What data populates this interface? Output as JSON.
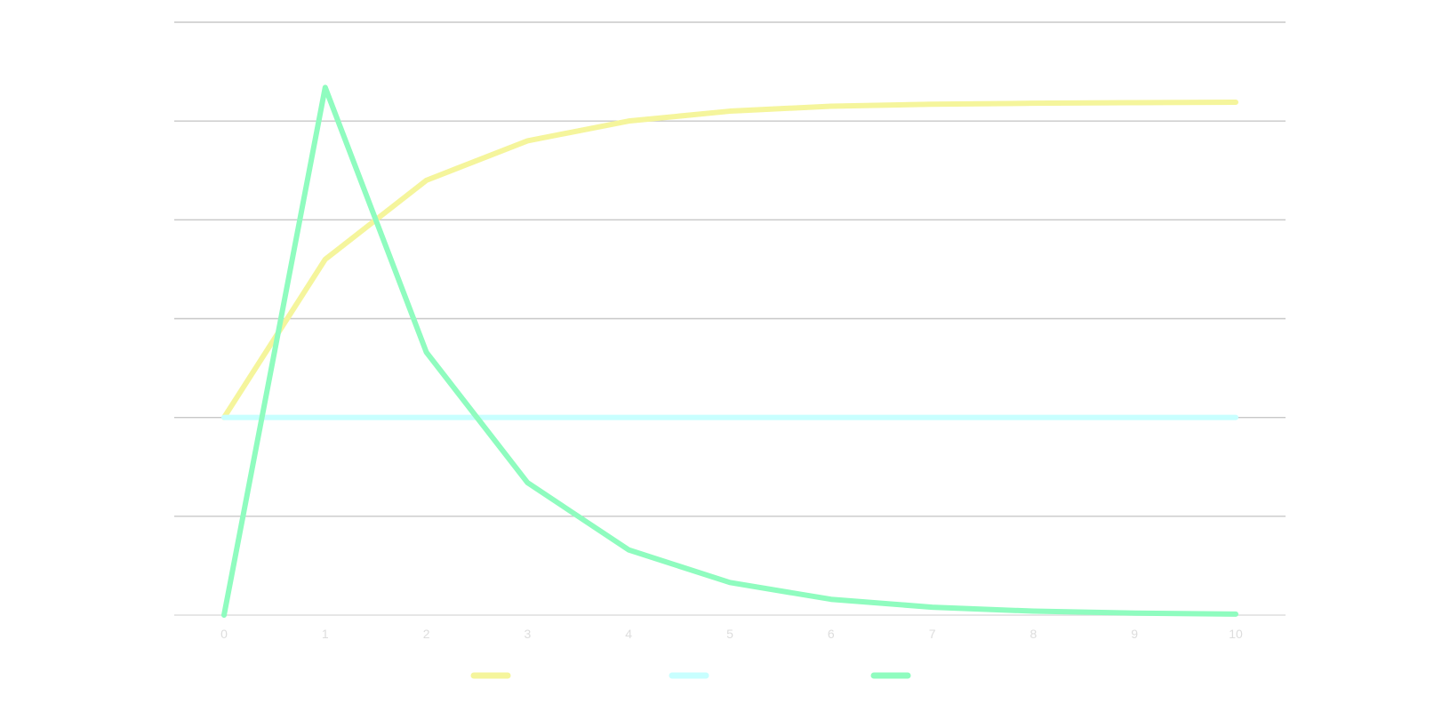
{
  "chart_data": {
    "type": "line",
    "title": "",
    "xlabel": "",
    "ylabel": "",
    "x": [
      0,
      1,
      2,
      3,
      4,
      5,
      6,
      7,
      8,
      9,
      10
    ],
    "x_tick_labels": [
      "0",
      "1",
      "2",
      "3",
      "4",
      "5",
      "6",
      "7",
      "8",
      "9",
      "10"
    ],
    "ylim": [
      0,
      3
    ],
    "gridlines_y": [
      0,
      0.5,
      1,
      1.5,
      2,
      2.5,
      3
    ],
    "grid": true,
    "legend_position": "bottom",
    "series": [
      {
        "color": "#f5f59c",
        "values": [
          1.0,
          1.8,
          2.2,
          2.4,
          2.5,
          2.55,
          2.575,
          2.585,
          2.59,
          2.593,
          2.595
        ]
      },
      {
        "color": "#c8ffff",
        "values": [
          1.0,
          1.0,
          1.0,
          1.0,
          1.0,
          1.0,
          1.0,
          1.0,
          1.0,
          1.0,
          1.0
        ]
      },
      {
        "color": "#8ffcbf",
        "values": [
          0.0,
          2.67,
          1.33,
          0.67,
          0.33,
          0.165,
          0.08,
          0.04,
          0.02,
          0.01,
          0.005
        ]
      }
    ]
  }
}
